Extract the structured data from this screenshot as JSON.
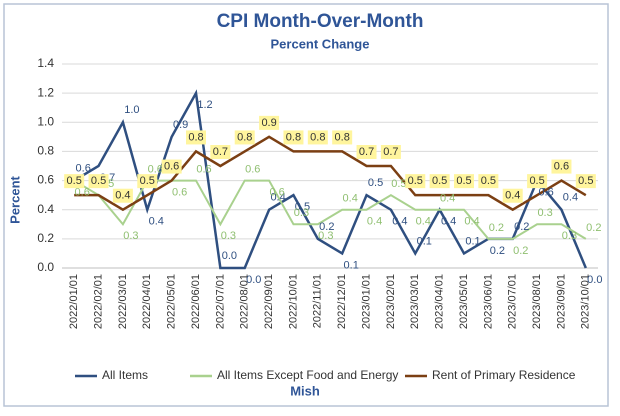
{
  "chart_data": {
    "type": "line",
    "title": "CPI Month-Over-Month",
    "subtitle": "Percent Change",
    "y_label": "Percent",
    "x_label": "Mish",
    "categories": [
      "2022/01/01",
      "2022/02/01",
      "2022/03/01",
      "2022/04/01",
      "2022/05/01",
      "2022/06/01",
      "2022/07/01",
      "2022/08/01",
      "2022/09/01",
      "2022/10/01",
      "2022/11/01",
      "2022/12/01",
      "2023/01/01",
      "2023/02/01",
      "2023/03/01",
      "2023/04/01",
      "2023/05/01",
      "2023/06/01",
      "2023/07/01",
      "2023/08/01",
      "2023/09/01",
      "2023/10/01"
    ],
    "series": [
      {
        "name": "All Items",
        "color": "#2f4f80",
        "values": [
          0.6,
          0.7,
          1.0,
          0.4,
          0.9,
          1.2,
          0.0,
          0.0,
          0.4,
          0.5,
          0.2,
          0.1,
          0.5,
          0.4,
          0.1,
          0.4,
          0.1,
          0.2,
          0.2,
          0.6,
          0.4,
          0.0
        ],
        "value_labels": [
          "0.6",
          "0.7",
          "1.0",
          "0.4",
          "0.9",
          "1.2",
          "0.0",
          "0.0",
          "0.4",
          "0.5",
          "0.2",
          "0.1",
          "0.5",
          "0.4",
          "0.1",
          "0.4",
          "0.1",
          "0.2",
          "0.2",
          "0.6",
          "0.4",
          "0.0"
        ]
      },
      {
        "name": "All Items Except Food and Energy",
        "color": "#a9d18e",
        "values": [
          0.6,
          0.5,
          0.3,
          0.6,
          0.6,
          0.6,
          0.3,
          0.6,
          0.6,
          0.3,
          0.3,
          0.4,
          0.4,
          0.5,
          0.4,
          0.4,
          0.4,
          0.2,
          0.2,
          0.3,
          0.3,
          0.2
        ],
        "value_labels": [
          "0.6",
          "0.5",
          "0.3",
          "0.6",
          "0.6",
          "0.6",
          "0.3",
          "0.6",
          "0.6",
          "0.3",
          "0.3",
          "0.4",
          "0.4",
          "0.5",
          "0.4",
          "0.4",
          "0.4",
          "0.2",
          "0.2",
          "0.3",
          "0.3",
          "0.2"
        ]
      },
      {
        "name": "Rent of Primary Residence",
        "color": "#7b3f13",
        "values": [
          0.5,
          0.5,
          0.4,
          0.5,
          0.6,
          0.8,
          0.7,
          0.8,
          0.9,
          0.8,
          0.8,
          0.8,
          0.7,
          0.7,
          0.5,
          0.5,
          0.5,
          0.5,
          0.4,
          0.5,
          0.6,
          0.5
        ],
        "value_labels": [
          "0.5",
          "0.5",
          "0.4",
          "0.5",
          "0.6",
          "0.8",
          "0.7",
          "0.8",
          "0.9",
          "0.8",
          "0.8",
          "0.8",
          "0.7",
          "0.7",
          "0.5",
          "0.5",
          "0.5",
          "0.5",
          "0.4",
          "0.5",
          "0.6",
          "0.5"
        ]
      }
    ],
    "ylim": [
      0,
      1.4
    ],
    "yticks": [
      {
        "value": 0,
        "label": "0.0"
      },
      0.2,
      0.4,
      0.6,
      0.8,
      {
        "value": 1,
        "label": "1.0"
      },
      1.2,
      1.4
    ],
    "grid": true,
    "legend": "bottom"
  }
}
